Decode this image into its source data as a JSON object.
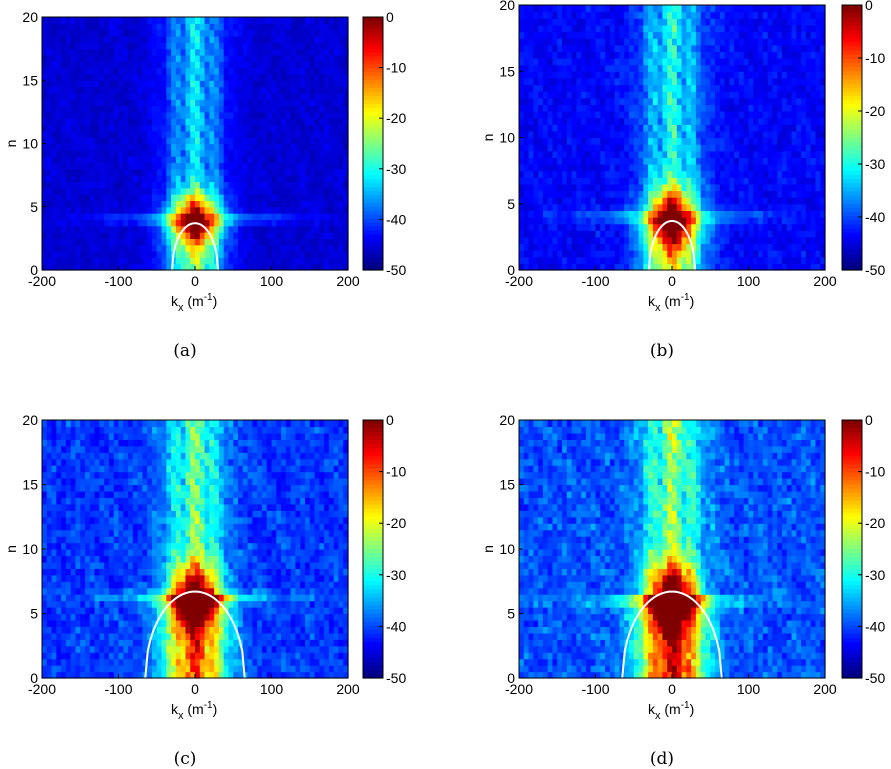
{
  "chart_data": [
    {
      "type": "heatmap",
      "panel": "a",
      "caption": "(a)",
      "xlabel": "k",
      "xlabel_sub": "x",
      "xlabel_unit": " (m",
      "xlabel_unit_sup": "-1",
      "xlabel_close": ")",
      "ylabel": "n",
      "xlim": [
        -200,
        200
      ],
      "ylim": [
        0,
        20
      ],
      "xticks": [
        "-200",
        "-100",
        "0",
        "100",
        "200"
      ],
      "yticks": [
        "0",
        "5",
        "10",
        "15",
        "20"
      ],
      "colorbar": {
        "range": [
          -50,
          0
        ],
        "ticks": [
          "0",
          "-10",
          "-20",
          "-30",
          "-40",
          "-50"
        ]
      },
      "boundary_curve": {
        "color": "#ffffff",
        "x_half_width": 30,
        "peak_n": 3.7
      },
      "spread": 0.7,
      "peak_n": 4.1,
      "cross_row": 4.1
    },
    {
      "type": "heatmap",
      "panel": "b",
      "caption": "(b)",
      "xlabel": "k",
      "xlabel_sub": "x",
      "xlabel_unit": " (m",
      "xlabel_unit_sup": "-1",
      "xlabel_close": ")",
      "ylabel": "n",
      "xlim": [
        -200,
        200
      ],
      "ylim": [
        0,
        20
      ],
      "xticks": [
        "-200",
        "-100",
        "0",
        "100",
        "200"
      ],
      "yticks": [
        "0",
        "5",
        "10",
        "15",
        "20"
      ],
      "colorbar": {
        "range": [
          -50,
          0
        ],
        "ticks": [
          "0",
          "-10",
          "-20",
          "-30",
          "-40",
          "-50"
        ]
      },
      "boundary_curve": {
        "color": "#ffffff",
        "x_half_width": 30,
        "peak_n": 3.7
      },
      "spread": 1.0,
      "peak_n": 4.1,
      "cross_row": 4.1
    },
    {
      "type": "heatmap",
      "panel": "c",
      "caption": "(c)",
      "xlabel": "k",
      "xlabel_sub": "x",
      "xlabel_unit": " (m",
      "xlabel_unit_sup": "-1",
      "xlabel_close": ")",
      "ylabel": "n",
      "xlim": [
        -200,
        200
      ],
      "ylim": [
        0,
        20
      ],
      "xticks": [
        "-200",
        "-100",
        "0",
        "100",
        "200"
      ],
      "yticks": [
        "0",
        "5",
        "10",
        "15",
        "20"
      ],
      "colorbar": {
        "range": [
          -50,
          0
        ],
        "ticks": [
          "0",
          "-10",
          "-20",
          "-30",
          "-40",
          "-50"
        ]
      },
      "boundary_curve": {
        "color": "#ffffff",
        "x_half_width": 65,
        "peak_n": 6.7
      },
      "spread": 1.4,
      "peak_n": 6.5,
      "cross_row": 6.3
    },
    {
      "type": "heatmap",
      "panel": "d",
      "caption": "(d)",
      "xlabel": "k",
      "xlabel_sub": "x",
      "xlabel_unit": " (m",
      "xlabel_unit_sup": "-1",
      "xlabel_close": ")",
      "ylabel": "n",
      "xlim": [
        -200,
        200
      ],
      "ylim": [
        0,
        20
      ],
      "xticks": [
        "-200",
        "-100",
        "0",
        "100",
        "200"
      ],
      "yticks": [
        "0",
        "5",
        "10",
        "15",
        "20"
      ],
      "colorbar": {
        "range": [
          -50,
          0
        ],
        "ticks": [
          "0",
          "-10",
          "-20",
          "-30",
          "-40",
          "-50"
        ]
      },
      "boundary_curve": {
        "color": "#ffffff",
        "x_half_width": 65,
        "peak_n": 6.7
      },
      "spread": 1.6,
      "peak_n": 6.5,
      "cross_row": 6.0
    }
  ]
}
